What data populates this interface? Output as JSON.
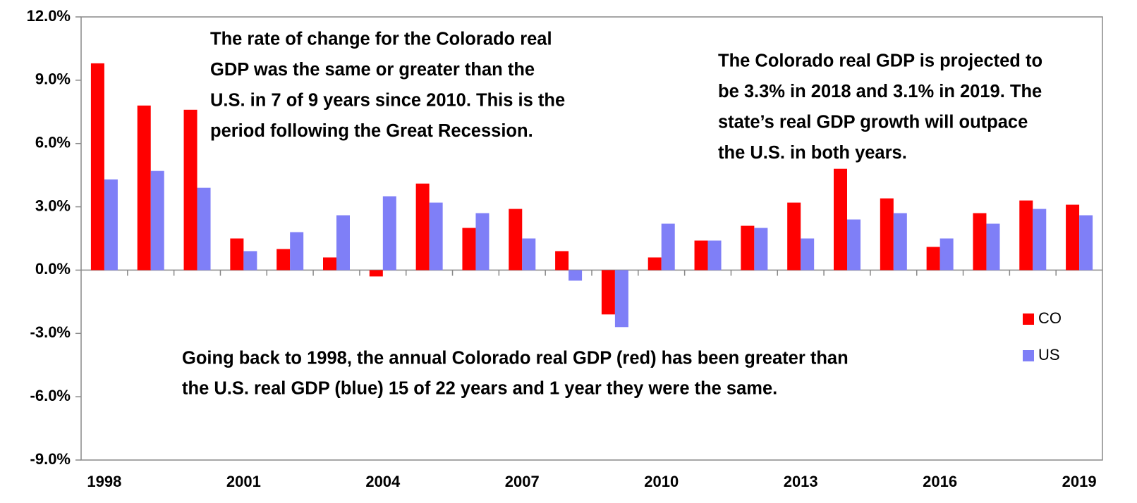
{
  "chart_data": {
    "type": "bar",
    "categories": [
      "1998",
      null,
      null,
      "2001",
      null,
      null,
      "2004",
      null,
      null,
      "2007",
      null,
      null,
      "2010",
      null,
      null,
      "2013",
      null,
      null,
      "2016",
      null,
      null,
      "2019"
    ],
    "series": [
      {
        "name": "CO",
        "color": "#ff0000",
        "values": [
          9.8,
          7.8,
          7.6,
          1.5,
          1.0,
          0.6,
          -0.3,
          4.1,
          2.0,
          2.9,
          0.9,
          -2.1,
          0.6,
          1.4,
          2.1,
          3.2,
          4.8,
          3.4,
          1.1,
          2.7,
          3.3,
          3.1
        ]
      },
      {
        "name": "US",
        "color": "#7f7ff7",
        "values": [
          4.3,
          4.7,
          3.9,
          0.9,
          1.8,
          2.6,
          3.5,
          3.2,
          2.7,
          1.5,
          -0.5,
          -2.7,
          2.2,
          1.4,
          2.0,
          1.5,
          2.4,
          2.7,
          1.5,
          2.2,
          2.9,
          2.6
        ]
      }
    ],
    "ylim": [
      -9,
      12
    ],
    "yticks": [
      {
        "value": -9,
        "label": "-9.0%"
      },
      {
        "value": -6,
        "label": "-6.0%"
      },
      {
        "value": -3,
        "label": "-3.0%"
      },
      {
        "value": 0,
        "label": "0.0%"
      },
      {
        "value": 3,
        "label": "3.0%"
      },
      {
        "value": 6,
        "label": "6.0%"
      },
      {
        "value": 9,
        "label": "9.0%"
      },
      {
        "value": 12,
        "label": "12.0%"
      }
    ],
    "legend": "right",
    "annotations": [
      [
        "The rate of change for the Colorado real",
        "GDP was the same or greater than the",
        "U.S. in 7 of 9 years since 2010. This is the",
        "period following the Great Recession."
      ],
      [
        "The Colorado real GDP is projected to",
        "be 3.3% in 2018 and 3.1% in 2019. The",
        "state’s real GDP growth will outpace",
        "the U.S. in both years."
      ],
      [
        "Going back to 1998, the annual Colorado real GDP (red) has been greater than",
        "the U.S. real GDP (blue) 15 of 22 years and 1 year they were the same."
      ]
    ]
  }
}
